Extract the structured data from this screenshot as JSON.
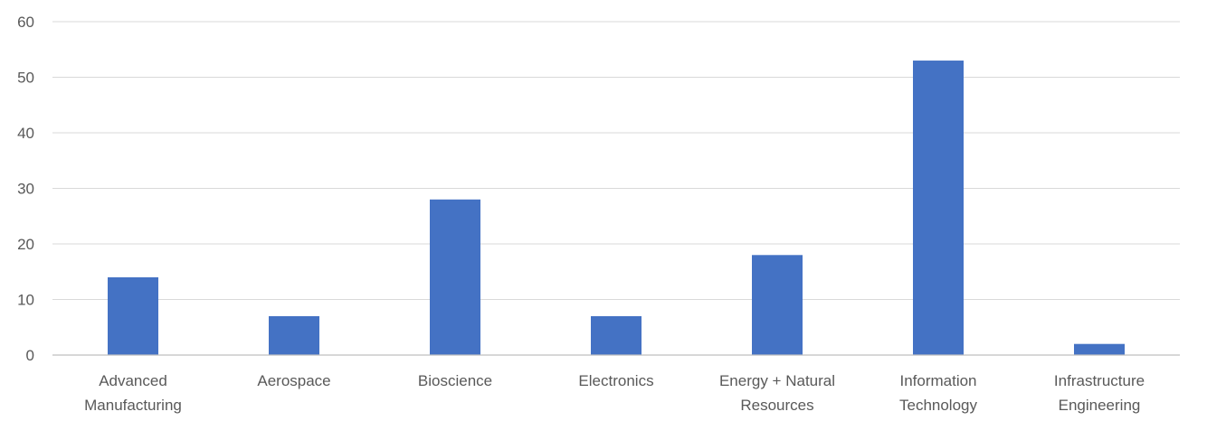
{
  "chart_data": {
    "type": "bar",
    "title": "",
    "xlabel": "",
    "ylabel": "",
    "categories": [
      [
        "Advanced",
        "Manufacturing"
      ],
      [
        "Aerospace"
      ],
      [
        "Bioscience"
      ],
      [
        "Electronics"
      ],
      [
        "Energy + Natural",
        "Resources"
      ],
      [
        "Information",
        "Technology"
      ],
      [
        "Infrastructure",
        "Engineering"
      ]
    ],
    "values": [
      14,
      7,
      28,
      7,
      18,
      53,
      2
    ],
    "ylim": [
      0,
      60
    ],
    "yticks": [
      "0",
      "10",
      "20",
      "30",
      "40",
      "50",
      "60"
    ],
    "grid": true,
    "legend": "none",
    "colors": {
      "bar": "#4472C4",
      "gridline": "#d9d9d9",
      "axis": "#bfbfbf",
      "text": "#595959"
    }
  }
}
